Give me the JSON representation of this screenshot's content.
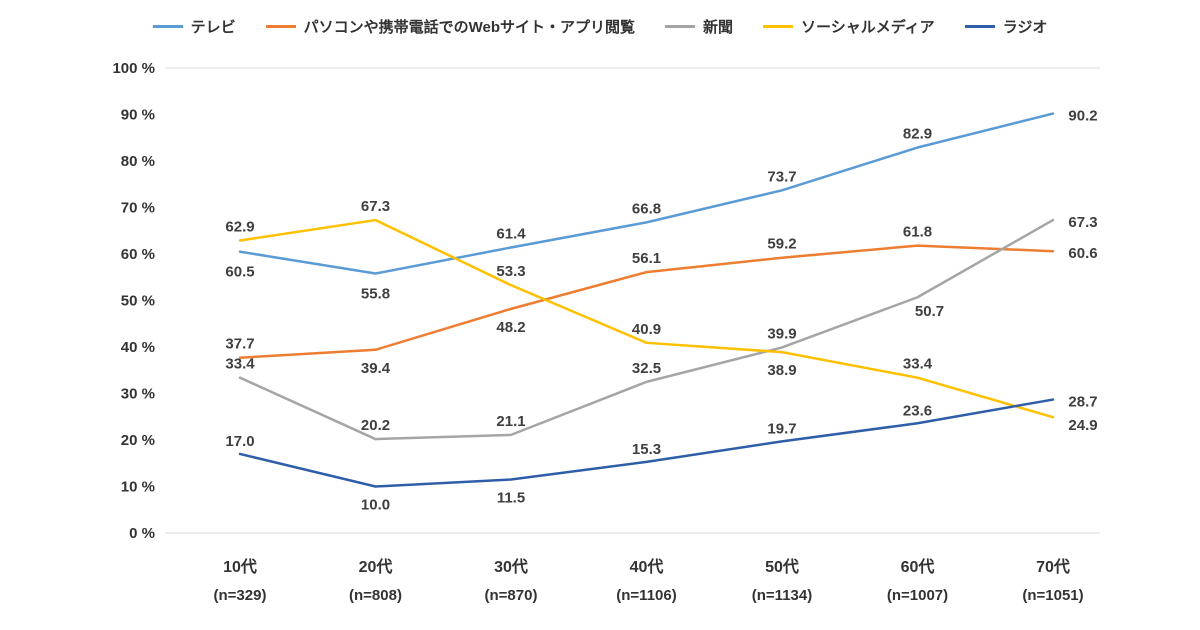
{
  "chart_data": {
    "type": "line",
    "title": "",
    "categories": [
      "10代",
      "20代",
      "30代",
      "40代",
      "50代",
      "60代",
      "70代"
    ],
    "category_sublabels": [
      "(n=329)",
      "(n=808)",
      "(n=870)",
      "(n=1106)",
      "(n=1134)",
      "(n=1007)",
      "(n=1051)"
    ],
    "ylim": [
      0,
      100
    ],
    "ytick_step": 10,
    "ytick_suffix": " %",
    "grid": false,
    "legend_position": "top",
    "series": [
      {
        "name": "テレビ",
        "color": "#5B9BD5",
        "values": [
          60.5,
          55.8,
          61.4,
          66.8,
          73.7,
          82.9,
          90.2
        ],
        "label_offsets": [
          [
            0,
            20
          ],
          [
            0,
            20
          ],
          [
            0,
            -14
          ],
          [
            0,
            -14
          ],
          [
            0,
            -14
          ],
          [
            0,
            -14
          ],
          [
            30,
            2
          ]
        ]
      },
      {
        "name": "パソコンや携帯電話でのWebサイト・アプリ閲覧",
        "color": "#ED7D31",
        "values": [
          37.7,
          39.4,
          48.2,
          56.1,
          59.2,
          61.8,
          60.6
        ],
        "label_offsets": [
          [
            0,
            -14
          ],
          [
            0,
            18
          ],
          [
            0,
            18
          ],
          [
            0,
            -14
          ],
          [
            0,
            -14
          ],
          [
            0,
            -14
          ],
          [
            30,
            2
          ]
        ]
      },
      {
        "name": "新聞",
        "color": "#A5A5A5",
        "values": [
          33.4,
          20.2,
          21.1,
          32.5,
          39.9,
          50.7,
          67.3
        ],
        "label_offsets": [
          [
            0,
            -14
          ],
          [
            0,
            -14
          ],
          [
            0,
            -14
          ],
          [
            0,
            -14
          ],
          [
            0,
            -14
          ],
          [
            12,
            14
          ],
          [
            30,
            2
          ]
        ]
      },
      {
        "name": "ソーシャルメディア",
        "color": "#FFC000",
        "values": [
          62.9,
          67.3,
          53.3,
          40.9,
          38.9,
          33.4,
          24.9
        ],
        "label_offsets": [
          [
            0,
            -14
          ],
          [
            0,
            -14
          ],
          [
            0,
            -14
          ],
          [
            0,
            -14
          ],
          [
            0,
            18
          ],
          [
            0,
            -14
          ],
          [
            30,
            8
          ]
        ]
      },
      {
        "name": "ラジオ",
        "color": "#2E5EA8",
        "values": [
          17.0,
          10.0,
          11.5,
          15.3,
          19.7,
          23.6,
          28.7
        ],
        "label_offsets": [
          [
            0,
            -13
          ],
          [
            0,
            18
          ],
          [
            0,
            18
          ],
          [
            0,
            -13
          ],
          [
            0,
            -13
          ],
          [
            0,
            -13
          ],
          [
            30,
            2
          ]
        ]
      }
    ]
  },
  "styles": {
    "text_color": "#333333",
    "data_label_color": "#3F3F3F",
    "axis_line_color": "#D9D9D9",
    "background": "#FFFFFF"
  }
}
